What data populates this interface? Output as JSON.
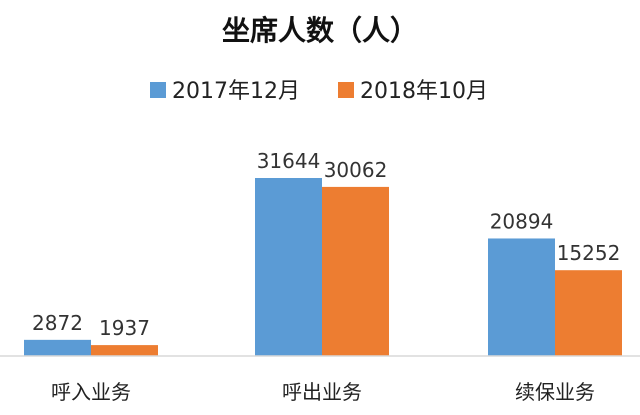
{
  "chart_data": {
    "type": "bar",
    "title": "坐席人数（人）",
    "categories": [
      "呼入业务",
      "呼出业务",
      "续保业务"
    ],
    "series": [
      {
        "name": "2017年12月",
        "values": [
          2872,
          31644,
          20894
        ],
        "color": "#5B9BD5"
      },
      {
        "name": "2018年10月",
        "values": [
          1937,
          30062,
          15252
        ],
        "color": "#ED7D31"
      }
    ],
    "legend_position": "top-center",
    "ylim": [
      0,
      34000
    ],
    "grid": false,
    "axis_color": "#D9D9D9"
  }
}
